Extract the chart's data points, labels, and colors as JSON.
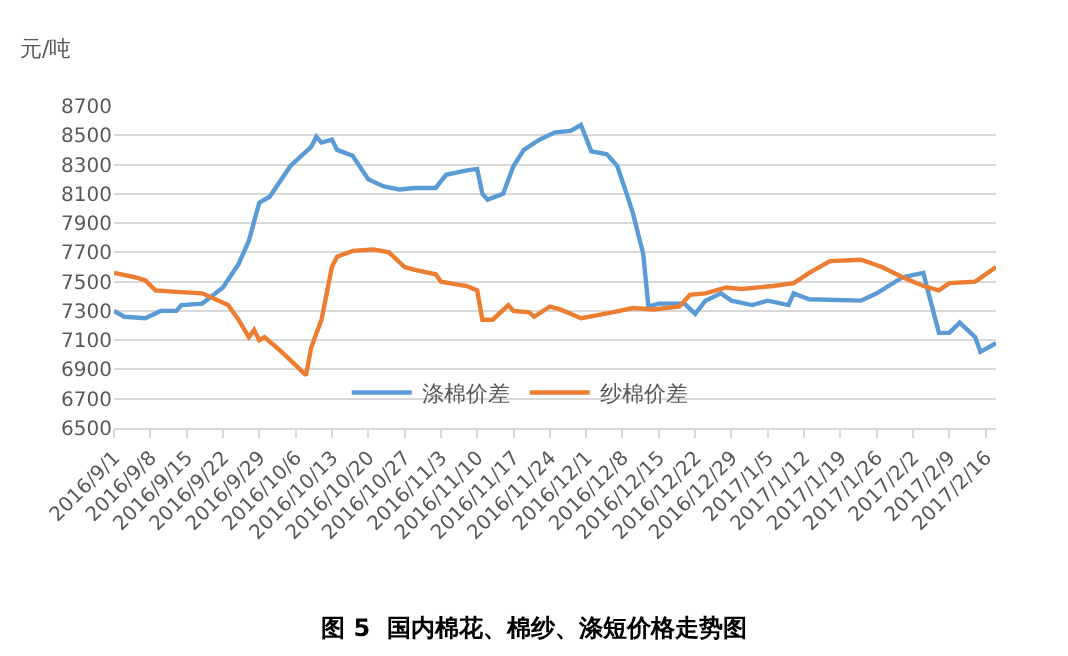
{
  "chart_data": {
    "type": "line",
    "title": "图 5  国内棉花、棉纱、涤短价格走势图",
    "ylabel": "元/吨",
    "xlim": [
      "2016-09-01",
      "2017-02-18"
    ],
    "ylim": [
      6500,
      8700
    ],
    "yticks": [
      6500,
      6700,
      6900,
      7100,
      7300,
      7500,
      7700,
      7900,
      8100,
      8300,
      8500,
      8700
    ],
    "xticks": [
      {
        "value": "2016-09-01",
        "label": "2016/9/1"
      },
      {
        "value": "2016-09-08",
        "label": "2016/9/8"
      },
      {
        "value": "2016-09-15",
        "label": "2016/9/15"
      },
      {
        "value": "2016-09-22",
        "label": "2016/9/22"
      },
      {
        "value": "2016-09-29",
        "label": "2016/9/29"
      },
      {
        "value": "2016-10-06",
        "label": "2016/10/6"
      },
      {
        "value": "2016-10-13",
        "label": "2016/10/13"
      },
      {
        "value": "2016-10-20",
        "label": "2016/10/20"
      },
      {
        "value": "2016-10-27",
        "label": "2016/10/27"
      },
      {
        "value": "2016-11-03",
        "label": "2016/11/3"
      },
      {
        "value": "2016-11-10",
        "label": "2016/11/10"
      },
      {
        "value": "2016-11-17",
        "label": "2016/11/17"
      },
      {
        "value": "2016-11-24",
        "label": "2016/11/24"
      },
      {
        "value": "2016-12-01",
        "label": "2016/12/1"
      },
      {
        "value": "2016-12-08",
        "label": "2016/12/8"
      },
      {
        "value": "2016-12-15",
        "label": "2016/12/15"
      },
      {
        "value": "2016-12-22",
        "label": "2016/12/22"
      },
      {
        "value": "2016-12-29",
        "label": "2016/12/29"
      },
      {
        "value": "2017-01-05",
        "label": "2017/1/5"
      },
      {
        "value": "2017-01-12",
        "label": "2017/1/12"
      },
      {
        "value": "2017-01-19",
        "label": "2017/1/19"
      },
      {
        "value": "2017-01-26",
        "label": "2017/1/26"
      },
      {
        "value": "2017-02-02",
        "label": "2017/2/2"
      },
      {
        "value": "2017-02-09",
        "label": "2017/2/9"
      },
      {
        "value": "2017-02-16",
        "label": "2017/2/16"
      }
    ],
    "grid": "y",
    "legend": "bottom",
    "marker": "none",
    "line_style": "solid",
    "series": [
      {
        "name": "涤棉价差",
        "color": "#5b9bd5",
        "x": [
          "2016-09-01",
          "2016-09-03",
          "2016-09-07",
          "2016-09-10",
          "2016-09-13",
          "2016-09-14",
          "2016-09-18",
          "2016-09-22",
          "2016-09-25",
          "2016-09-27",
          "2016-09-29",
          "2016-10-01",
          "2016-10-05",
          "2016-10-09",
          "2016-10-10",
          "2016-10-11",
          "2016-10-13",
          "2016-10-14",
          "2016-10-17",
          "2016-10-20",
          "2016-10-23",
          "2016-10-26",
          "2016-10-29",
          "2016-11-02",
          "2016-11-04",
          "2016-11-08",
          "2016-11-10",
          "2016-11-11",
          "2016-11-12",
          "2016-11-15",
          "2016-11-17",
          "2016-11-19",
          "2016-11-22",
          "2016-11-25",
          "2016-11-28",
          "2016-11-30",
          "2016-12-02",
          "2016-12-05",
          "2016-12-07",
          "2016-12-09",
          "2016-12-10",
          "2016-12-12",
          "2016-12-13",
          "2016-12-15",
          "2016-12-20",
          "2016-12-22",
          "2016-12-24",
          "2016-12-27",
          "2016-12-29",
          "2017-01-02",
          "2017-01-05",
          "2017-01-09",
          "2017-01-10",
          "2017-01-13",
          "2017-01-23",
          "2017-01-26",
          "2017-01-31",
          "2017-02-04",
          "2017-02-05",
          "2017-02-07",
          "2017-02-09",
          "2017-02-11",
          "2017-02-14",
          "2017-02-15",
          "2017-02-18"
        ],
        "values": [
          7300,
          7260,
          7250,
          7300,
          7300,
          7340,
          7350,
          7460,
          7620,
          7780,
          8040,
          8080,
          8290,
          8420,
          8490,
          8450,
          8470,
          8400,
          8360,
          8200,
          8150,
          8130,
          8140,
          8140,
          8230,
          8260,
          8270,
          8100,
          8060,
          8100,
          8290,
          8400,
          8470,
          8520,
          8530,
          8570,
          8390,
          8370,
          8290,
          8080,
          7970,
          7690,
          7330,
          7350,
          7350,
          7280,
          7370,
          7420,
          7370,
          7340,
          7370,
          7340,
          7420,
          7380,
          7370,
          7420,
          7530,
          7560,
          7420,
          7150,
          7150,
          7220,
          7120,
          7020,
          7080
        ]
      },
      {
        "name": "纱棉价差",
        "color": "#ed7d31",
        "x": [
          "2016-09-01",
          "2016-09-05",
          "2016-09-07",
          "2016-09-09",
          "2016-09-13",
          "2016-09-18",
          "2016-09-23",
          "2016-09-25",
          "2016-09-27",
          "2016-09-28",
          "2016-09-29",
          "2016-09-30",
          "2016-10-03",
          "2016-10-06",
          "2016-10-08",
          "2016-10-09",
          "2016-10-11",
          "2016-10-13",
          "2016-10-14",
          "2016-10-17",
          "2016-10-21",
          "2016-10-24",
          "2016-10-27",
          "2016-10-29",
          "2016-11-02",
          "2016-11-03",
          "2016-11-08",
          "2016-11-10",
          "2016-11-11",
          "2016-11-13",
          "2016-11-16",
          "2016-11-17",
          "2016-11-20",
          "2016-11-21",
          "2016-11-24",
          "2016-11-26",
          "2016-11-28",
          "2016-11-30",
          "2016-12-03",
          "2016-12-06",
          "2016-12-10",
          "2016-12-14",
          "2016-12-19",
          "2016-12-21",
          "2016-12-24",
          "2016-12-28",
          "2016-12-31",
          "2017-01-06",
          "2017-01-10",
          "2017-01-13",
          "2017-01-17",
          "2017-01-23",
          "2017-01-27",
          "2017-01-31",
          "2017-02-04",
          "2017-02-07",
          "2017-02-09",
          "2017-02-14",
          "2017-02-18"
        ],
        "values": [
          7560,
          7530,
          7510,
          7440,
          7430,
          7420,
          7340,
          7240,
          7120,
          7170,
          7100,
          7120,
          7030,
          6930,
          6860,
          7050,
          7240,
          7600,
          7670,
          7710,
          7720,
          7700,
          7600,
          7580,
          7550,
          7500,
          7470,
          7440,
          7240,
          7240,
          7340,
          7300,
          7290,
          7260,
          7330,
          7310,
          7280,
          7250,
          7270,
          7290,
          7320,
          7310,
          7330,
          7410,
          7420,
          7460,
          7450,
          7470,
          7490,
          7560,
          7640,
          7650,
          7600,
          7530,
          7470,
          7440,
          7490,
          7500,
          7600
        ]
      }
    ]
  }
}
